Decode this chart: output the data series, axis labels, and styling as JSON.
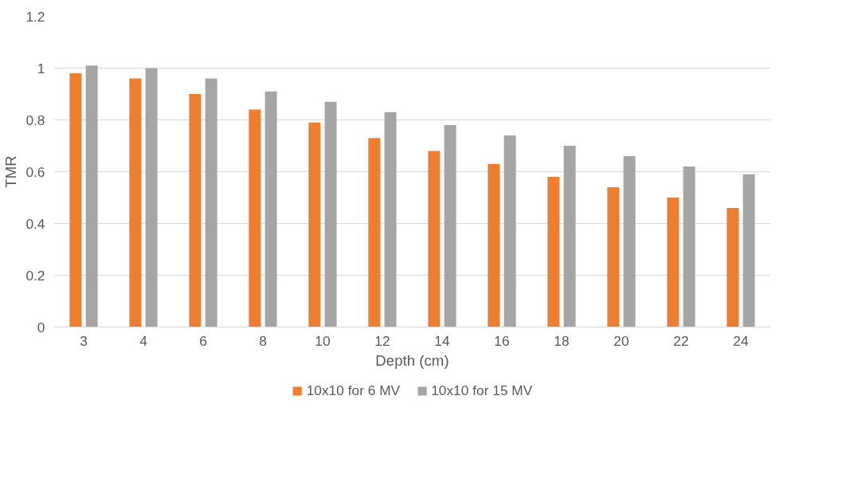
{
  "chart_data": {
    "type": "bar",
    "xlabel": "Depth (cm)",
    "ylabel": "TMR",
    "categories": [
      "3",
      "4",
      "6",
      "8",
      "10",
      "12",
      "14",
      "16",
      "18",
      "20",
      "22",
      "24"
    ],
    "series": [
      {
        "name": "10x10 for 6 MV",
        "color": "#ed7d31",
        "values": [
          0.98,
          0.96,
          0.9,
          0.84,
          0.79,
          0.73,
          0.68,
          0.63,
          0.58,
          0.54,
          0.5,
          0.46
        ]
      },
      {
        "name": "10x10 for 15 MV",
        "color": "#a5a5a5",
        "values": [
          1.01,
          1.0,
          0.96,
          0.91,
          0.87,
          0.83,
          0.78,
          0.74,
          0.7,
          0.66,
          0.62,
          0.59
        ]
      }
    ],
    "ylim": [
      0,
      1.2
    ],
    "yticks": [
      0,
      0.2,
      0.4,
      0.6,
      0.8,
      1,
      1.2
    ],
    "grid": "y",
    "legend": "bottom"
  }
}
